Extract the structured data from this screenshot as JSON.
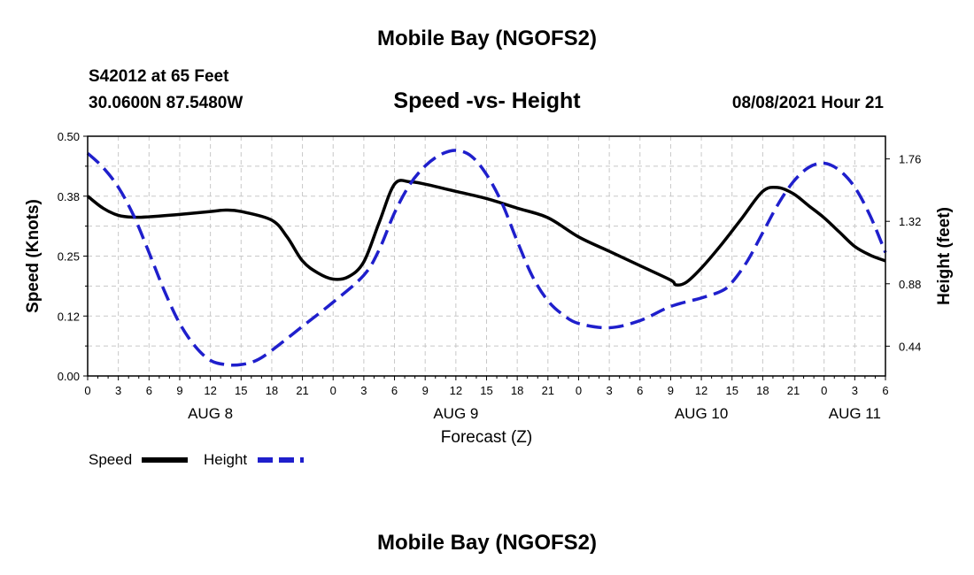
{
  "header": {
    "title": "Mobile Bay (NGOFS2)",
    "station": "S42012 at 65 Feet",
    "coordinates": "30.0600N  87.5480W",
    "subtitle": "Speed -vs- Height",
    "datetime": "08/08/2021 Hour 21"
  },
  "footer": {
    "title": "Mobile Bay (NGOFS2)"
  },
  "chart_data": {
    "type": "line",
    "title": "Speed -vs- Height",
    "xlabel": "Forecast (Z)",
    "ylabel": "Speed (Knots)",
    "y2label": "Height (feet)",
    "xlim": [
      0,
      78
    ],
    "ylim": [
      0.0,
      0.5
    ],
    "y2lim": [
      0.23,
      1.92
    ],
    "x_tick_labels": [
      "0",
      "3",
      "6",
      "9",
      "12",
      "15",
      "18",
      "21",
      "0",
      "3",
      "6",
      "9",
      "12",
      "15",
      "18",
      "21",
      "0",
      "3",
      "6",
      "9",
      "12",
      "15",
      "18",
      "21",
      "0",
      "3",
      "6"
    ],
    "y_tick_labels": [
      "0.00",
      "0.12",
      "0.25",
      "0.38",
      "0.50"
    ],
    "y_tick_values": [
      0.0,
      0.125,
      0.25,
      0.375,
      0.5
    ],
    "y2_tick_labels": [
      "0.44",
      "0.88",
      "1.32",
      "1.76"
    ],
    "y2_tick_values": [
      0.44,
      0.88,
      1.32,
      1.76
    ],
    "day_labels": [
      {
        "text": "AUG 8",
        "x": 12
      },
      {
        "text": "AUG 9",
        "x": 36
      },
      {
        "text": "AUG 10",
        "x": 60
      },
      {
        "text": "AUG 11",
        "x": 75
      }
    ],
    "grid": true,
    "legend": [
      "Speed",
      "Height"
    ],
    "series": [
      {
        "name": "Speed",
        "axis": "left",
        "color": "#000000",
        "style": "solid",
        "x": [
          0,
          1.5,
          3,
          4.5,
          6,
          9,
          12,
          13.5,
          15,
          18,
          19.5,
          21,
          22.5,
          24,
          25.5,
          27,
          28.5,
          30,
          31.5,
          33,
          36,
          39,
          42,
          45,
          48,
          51,
          54,
          57,
          57.5,
          58.5,
          60,
          62,
          64,
          66,
          67.5,
          69,
          70.5,
          72,
          73.5,
          75,
          76.5,
          78
        ],
        "values": [
          0.375,
          0.35,
          0.335,
          0.331,
          0.332,
          0.337,
          0.343,
          0.346,
          0.343,
          0.325,
          0.29,
          0.24,
          0.215,
          0.202,
          0.207,
          0.238,
          0.32,
          0.4,
          0.405,
          0.4,
          0.385,
          0.37,
          0.35,
          0.33,
          0.29,
          0.26,
          0.23,
          0.2,
          0.19,
          0.195,
          0.225,
          0.275,
          0.33,
          0.385,
          0.393,
          0.38,
          0.355,
          0.33,
          0.3,
          0.27,
          0.252,
          0.24
        ]
      },
      {
        "name": "Height",
        "axis": "right",
        "color": "#1f1fcc",
        "style": "dashed",
        "x": [
          0,
          1.5,
          3,
          4.5,
          6,
          7.5,
          9,
          10.5,
          12,
          13.5,
          15,
          16.5,
          18,
          21,
          24,
          27,
          28.5,
          30,
          31.5,
          33,
          34.5,
          36,
          37.5,
          39,
          40.5,
          42,
          43.5,
          45,
          46.5,
          48,
          51,
          54,
          57,
          60,
          62,
          63,
          64.5,
          66,
          67.5,
          69,
          70.5,
          72,
          73.5,
          75,
          76.5,
          78
        ],
        "values": [
          1.8,
          1.7,
          1.56,
          1.36,
          1.1,
          0.83,
          0.6,
          0.44,
          0.34,
          0.31,
          0.31,
          0.34,
          0.41,
          0.58,
          0.75,
          0.94,
          1.12,
          1.38,
          1.58,
          1.71,
          1.79,
          1.82,
          1.78,
          1.65,
          1.45,
          1.18,
          0.93,
          0.76,
          0.66,
          0.6,
          0.57,
          0.62,
          0.72,
          0.78,
          0.83,
          0.89,
          1.04,
          1.24,
          1.44,
          1.6,
          1.7,
          1.73,
          1.68,
          1.56,
          1.36,
          1.1
        ]
      }
    ]
  }
}
